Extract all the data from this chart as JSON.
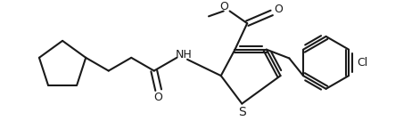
{
  "line_color": "#1a1a1a",
  "bg_color": "#ffffff",
  "line_width": 1.5,
  "figsize": [
    4.71,
    1.45
  ],
  "dpi": 100,
  "text_labels": {
    "O_carbonyl": "O",
    "NH": "NH",
    "S": "S",
    "O_ester_double": "O",
    "O_ester_single": "O",
    "Cl": "Cl"
  }
}
